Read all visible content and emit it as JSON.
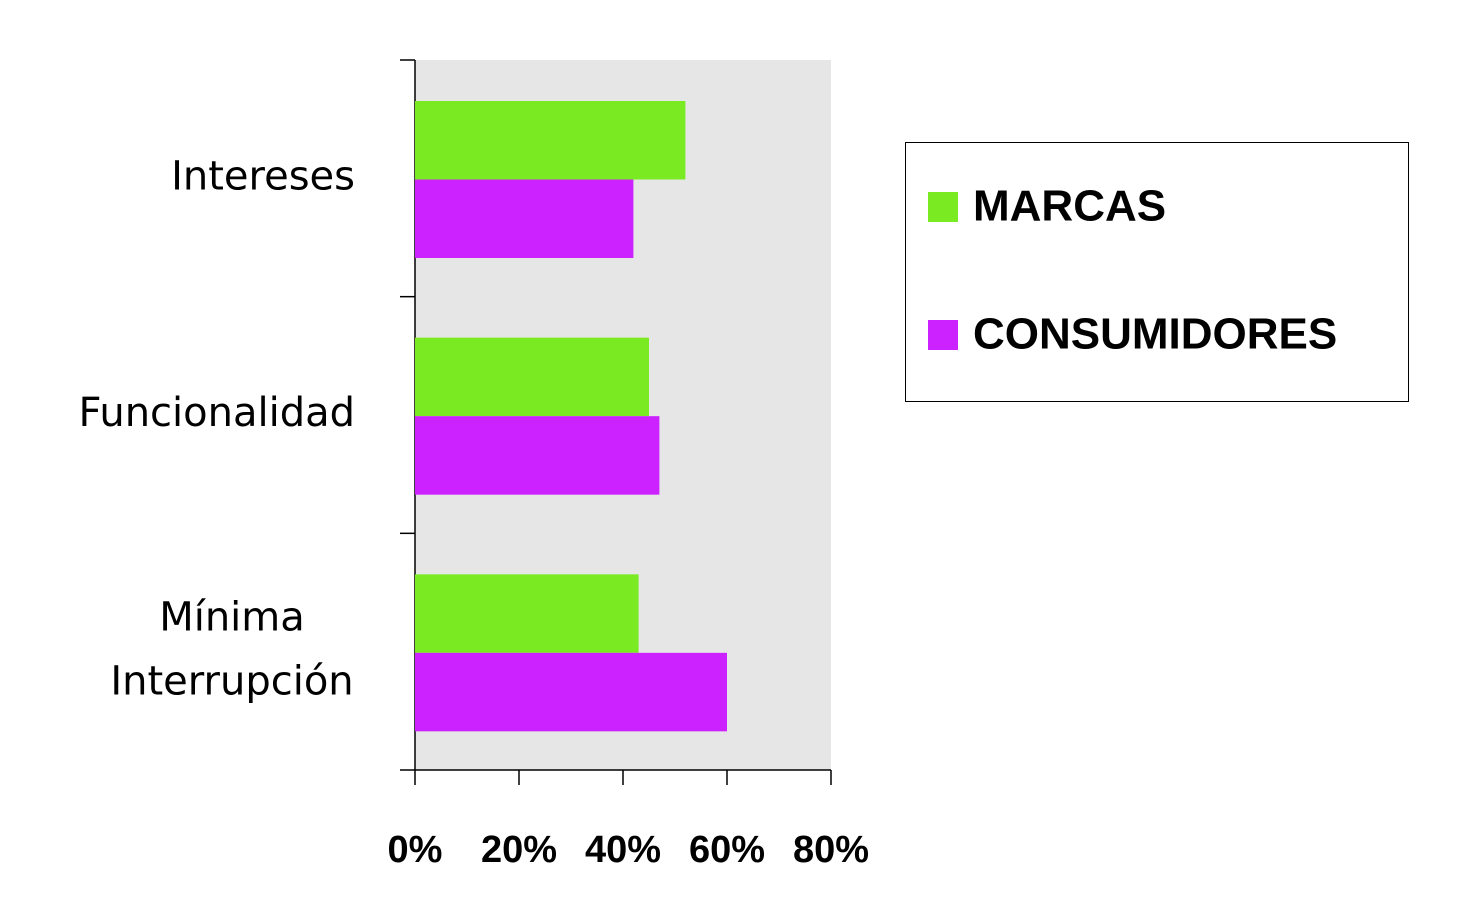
{
  "chart_data": {
    "type": "bar",
    "orientation": "horizontal",
    "categories": [
      "Intereses",
      "Funcionalidad",
      "Mínima Interrupción"
    ],
    "series": [
      {
        "name": "MARCAS",
        "color": "#7aeb22",
        "values": [
          52,
          45,
          43
        ]
      },
      {
        "name": "CONSUMIDORES",
        "color": "#cc22ff",
        "values": [
          42,
          47,
          60
        ]
      }
    ],
    "xlim": [
      0,
      80
    ],
    "xticks": [
      {
        "value": 0,
        "label": "0%"
      },
      {
        "value": 20,
        "label": "20%"
      },
      {
        "value": 40,
        "label": "40%"
      },
      {
        "value": 60,
        "label": "60%"
      },
      {
        "value": 80,
        "label": "80%"
      }
    ],
    "legend": "right"
  }
}
